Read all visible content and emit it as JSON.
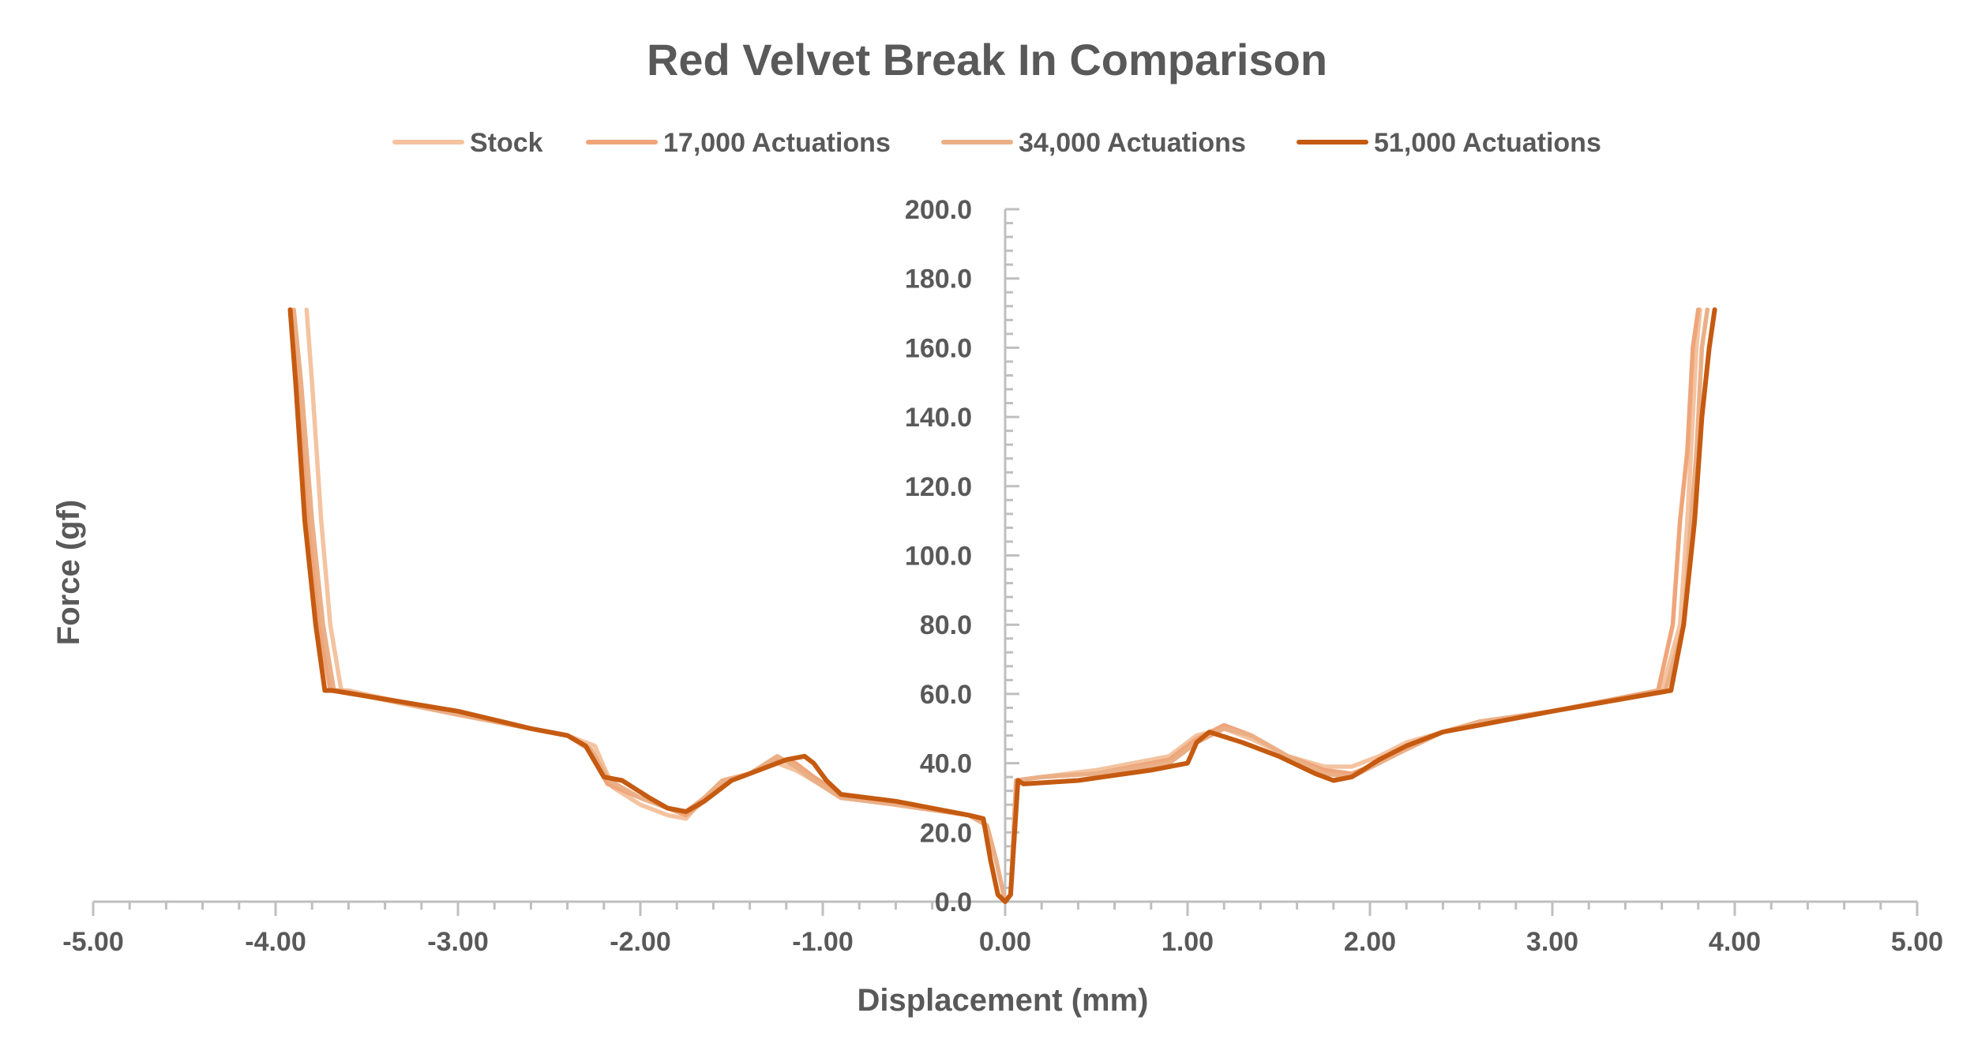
{
  "chart_data": {
    "type": "line",
    "title": "Red Velvet Break In Comparison",
    "xlabel": "Displacement (mm)",
    "ylabel": "Force (gf)",
    "xlim": [
      -5,
      5
    ],
    "ylim": [
      0,
      200
    ],
    "x_ticks": [
      "-5.00",
      "-4.00",
      "-3.00",
      "-2.00",
      "-1.00",
      "0.00",
      "1.00",
      "2.00",
      "3.00",
      "4.00",
      "5.00"
    ],
    "y_ticks": [
      "0.0",
      "20.0",
      "40.0",
      "60.0",
      "80.0",
      "100.0",
      "120.0",
      "140.0",
      "160.0",
      "180.0",
      "200.0"
    ],
    "legend_position": "top",
    "grid": false,
    "series": [
      {
        "name": "Stock",
        "color": "#F4C3A0",
        "x": [
          -3.83,
          -3.8,
          -3.75,
          -3.7,
          -3.64,
          -3.6,
          -3.0,
          -2.6,
          -2.4,
          -2.25,
          -2.15,
          -2.0,
          -1.85,
          -1.75,
          -1.65,
          -1.55,
          -1.4,
          -1.25,
          -1.15,
          -1.05,
          -0.9,
          -0.6,
          -0.2,
          -0.1,
          -0.05,
          0.0,
          0.03,
          0.06,
          0.2,
          0.5,
          0.9,
          1.05,
          1.2,
          1.35,
          1.55,
          1.75,
          1.9,
          2.05,
          2.2,
          2.4,
          2.6,
          3.0,
          3.6,
          3.7,
          3.74,
          3.76,
          3.79,
          3.81
        ],
        "y": [
          171,
          150,
          110,
          80,
          61,
          61,
          54,
          50,
          48,
          45,
          33,
          28,
          25,
          24,
          30,
          35,
          37,
          40,
          38,
          35,
          31,
          28,
          25,
          22,
          12,
          0,
          2,
          35,
          36,
          38,
          42,
          48,
          50,
          47,
          42,
          39,
          39,
          42,
          46,
          49,
          52,
          55,
          61,
          80,
          110,
          130,
          160,
          171
        ]
      },
      {
        "name": "17,000 Actuations",
        "color": "#EFA57A",
        "x": [
          -3.92,
          -3.88,
          -3.82,
          -3.76,
          -3.7,
          -3.66,
          -3.0,
          -2.6,
          -2.4,
          -2.28,
          -2.18,
          -2.0,
          -1.85,
          -1.75,
          -1.65,
          -1.55,
          -1.4,
          -1.25,
          -1.15,
          -1.05,
          -0.9,
          -0.6,
          -0.2,
          -0.1,
          -0.05,
          0.0,
          0.03,
          0.06,
          0.2,
          0.5,
          0.9,
          1.05,
          1.2,
          1.35,
          1.55,
          1.75,
          1.9,
          2.05,
          2.2,
          2.4,
          2.6,
          3.0,
          3.58,
          3.66,
          3.7,
          3.74,
          3.77,
          3.8
        ],
        "y": [
          171,
          150,
          110,
          80,
          61,
          61,
          54,
          50,
          48,
          44,
          34,
          30,
          27,
          25,
          29,
          34,
          37,
          41,
          40,
          36,
          31,
          28,
          25,
          22,
          12,
          0,
          2,
          35,
          36,
          37,
          41,
          47,
          51,
          48,
          42,
          38,
          37,
          40,
          45,
          49,
          52,
          55,
          61,
          80,
          110,
          130,
          160,
          171
        ]
      },
      {
        "name": "34,000 Actuations",
        "color": "#EBAF86",
        "x": [
          -3.9,
          -3.86,
          -3.8,
          -3.74,
          -3.68,
          -3.64,
          -3.0,
          -2.6,
          -2.4,
          -2.27,
          -2.17,
          -2.0,
          -1.85,
          -1.75,
          -1.65,
          -1.55,
          -1.4,
          -1.25,
          -1.15,
          -1.05,
          -0.9,
          -0.6,
          -0.2,
          -0.1,
          -0.05,
          0.0,
          0.03,
          0.06,
          0.2,
          0.5,
          0.9,
          1.05,
          1.2,
          1.35,
          1.55,
          1.75,
          1.9,
          2.05,
          2.2,
          2.4,
          2.6,
          3.0,
          3.62,
          3.72,
          3.76,
          3.79,
          3.82,
          3.85
        ],
        "y": [
          171,
          150,
          110,
          80,
          61,
          61,
          54,
          50,
          48,
          44,
          35,
          30,
          27,
          26,
          30,
          35,
          37,
          42,
          39,
          35,
          30,
          28,
          25,
          22,
          12,
          0,
          2,
          35,
          36,
          37,
          40,
          46,
          50,
          48,
          42,
          37,
          36,
          40,
          44,
          49,
          52,
          55,
          61,
          80,
          110,
          130,
          160,
          171
        ]
      },
      {
        "name": "51,000 Actuations",
        "color": "#C55A11",
        "x": [
          -3.92,
          -3.89,
          -3.84,
          -3.78,
          -3.73,
          -3.69,
          -3.0,
          -2.6,
          -2.4,
          -2.3,
          -2.2,
          -2.1,
          -1.95,
          -1.85,
          -1.75,
          -1.65,
          -1.5,
          -1.35,
          -1.2,
          -1.1,
          -1.05,
          -0.98,
          -0.9,
          -0.6,
          -0.2,
          -0.12,
          -0.08,
          -0.04,
          0.0,
          0.03,
          0.07,
          0.1,
          0.4,
          0.8,
          1.0,
          1.05,
          1.12,
          1.3,
          1.5,
          1.7,
          1.8,
          1.9,
          2.05,
          2.2,
          2.4,
          2.6,
          3.0,
          3.65,
          3.72,
          3.78,
          3.82,
          3.86,
          3.89
        ],
        "y": [
          171,
          150,
          110,
          80,
          61,
          61,
          55,
          50,
          48,
          45,
          36,
          35,
          30,
          27,
          26,
          29,
          35,
          38,
          41,
          42,
          40,
          35,
          31,
          29,
          25,
          24,
          12,
          2,
          0,
          2,
          35,
          34,
          35,
          38,
          40,
          46,
          49,
          46,
          42,
          37,
          35,
          36,
          41,
          45,
          49,
          51,
          55,
          61,
          80,
          110,
          140,
          160,
          171
        ]
      }
    ]
  }
}
